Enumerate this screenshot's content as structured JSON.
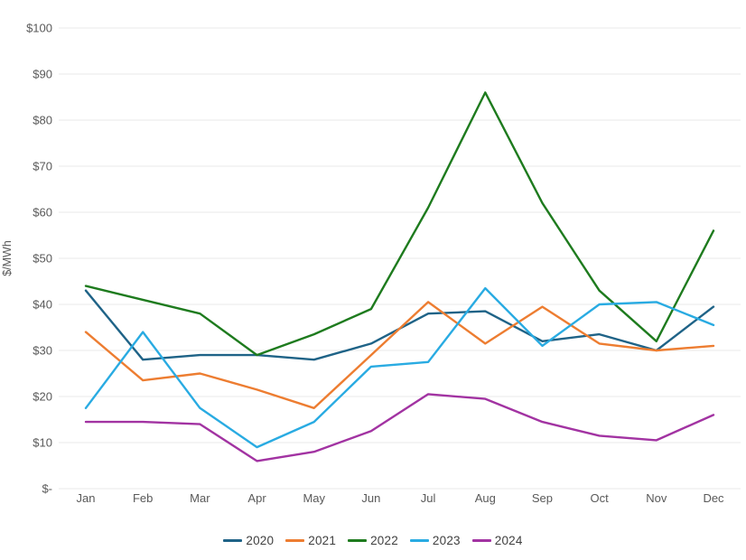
{
  "chart_data": {
    "type": "line",
    "title": "",
    "xlabel": "",
    "ylabel": "$/MWh",
    "ylim": [
      0,
      100
    ],
    "y_tick_step": 10,
    "y_tick_labels": [
      "$-",
      "$10",
      "$20",
      "$30",
      "$40",
      "$50",
      "$60",
      "$70",
      "$80",
      "$90",
      "$100"
    ],
    "grid": "horizontal",
    "gridline_color": "#e8e8e8",
    "legend_position": "bottom",
    "categories": [
      "Jan",
      "Feb",
      "Mar",
      "Apr",
      "May",
      "Jun",
      "Jul",
      "Aug",
      "Sep",
      "Oct",
      "Nov",
      "Dec"
    ],
    "series": [
      {
        "name": "2020",
        "color": "#1f6387",
        "values": [
          43,
          28,
          29,
          29,
          28,
          31.5,
          38,
          38.5,
          32,
          33.5,
          30,
          39.5
        ]
      },
      {
        "name": "2021",
        "color": "#ed7d31",
        "values": [
          34,
          23.5,
          25,
          21.5,
          17.5,
          29,
          40.5,
          31.5,
          39.5,
          31.5,
          30,
          31
        ]
      },
      {
        "name": "2022",
        "color": "#1e7b1e",
        "values": [
          44,
          41,
          38,
          29,
          33.5,
          39,
          61,
          86,
          62,
          43,
          32,
          56
        ]
      },
      {
        "name": "2023",
        "color": "#29abe2",
        "values": [
          17.5,
          34,
          17.5,
          9,
          14.5,
          26.5,
          27.5,
          43.5,
          31,
          40,
          40.5,
          35.5
        ]
      },
      {
        "name": "2024",
        "color": "#a233a2",
        "values": [
          14.5,
          14.5,
          14,
          6,
          8,
          12.5,
          20.5,
          19.5,
          14.5,
          11.5,
          10.5,
          16
        ]
      }
    ]
  }
}
